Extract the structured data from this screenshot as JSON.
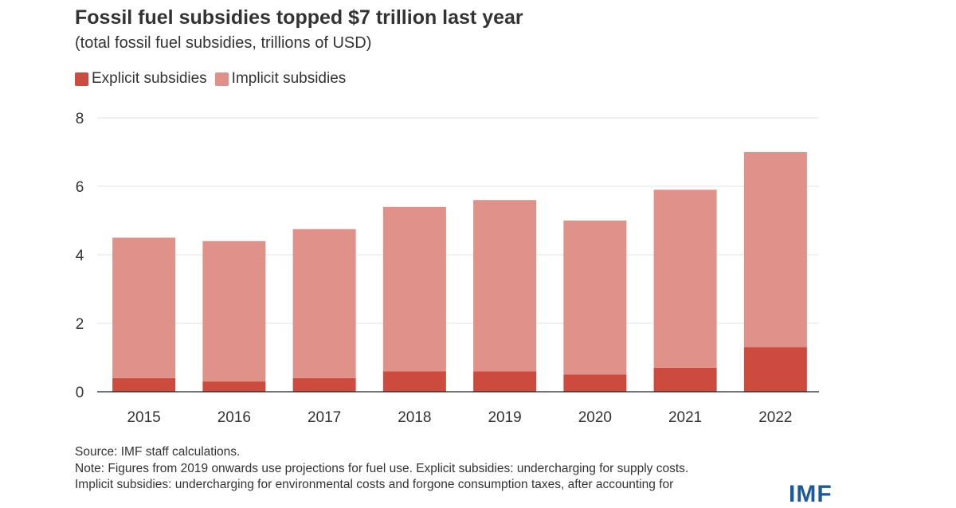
{
  "chart_data": {
    "type": "bar",
    "stacked": true,
    "title": "Fossil fuel subsidies topped $7 trillion last year",
    "subtitle": "(total fossil fuel subsidies, trillions of USD)",
    "categories": [
      "2015",
      "2016",
      "2017",
      "2018",
      "2019",
      "2020",
      "2021",
      "2022"
    ],
    "series": [
      {
        "name": "Explicit subsidies",
        "color": "#cd4a3e",
        "values": [
          0.4,
          0.3,
          0.4,
          0.6,
          0.6,
          0.5,
          0.7,
          1.3
        ]
      },
      {
        "name": "Implicit subsidies",
        "color": "#e0918a",
        "values": [
          4.1,
          4.1,
          4.35,
          4.8,
          5.0,
          4.5,
          5.2,
          5.7
        ]
      }
    ],
    "yticks": [
      "0",
      "2",
      "4",
      "6",
      "8"
    ],
    "ylim": [
      0,
      8
    ],
    "grid": true,
    "legend": "top-left"
  },
  "footer": {
    "source": "Source: IMF staff calculations.",
    "note_line1": "Note: Figures from 2019 onwards use projections for fuel use. Explicit subsidies: undercharging for supply costs.",
    "note_line2": "Implicit subsidies: undercharging for environmental costs and forgone consumption taxes, after accounting for"
  },
  "logo": "IMF"
}
